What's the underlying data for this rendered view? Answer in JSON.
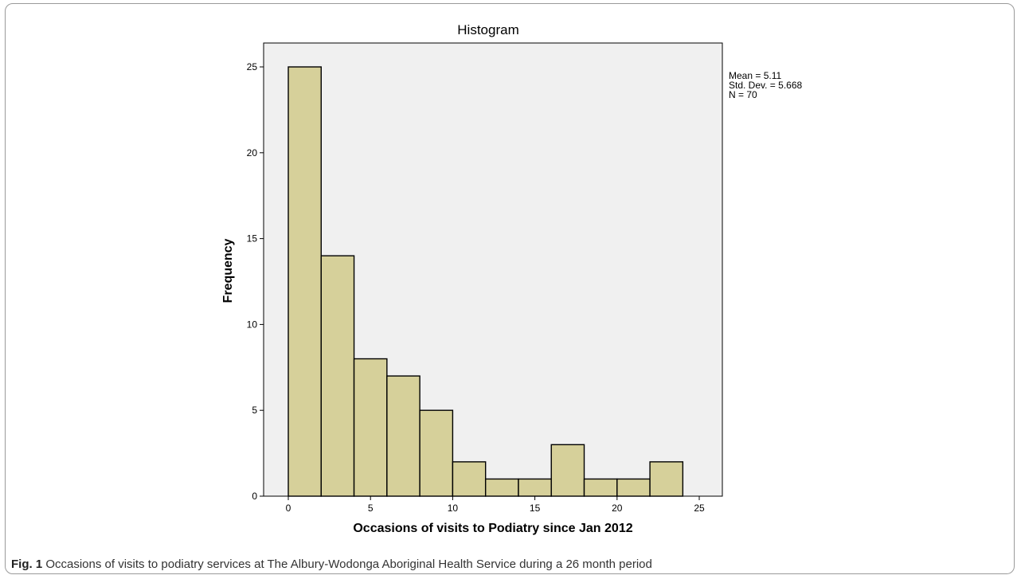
{
  "caption": {
    "label": "Fig. 1",
    "text": "Occasions of visits to podiatry services at The Albury-Wodonga Aboriginal Health Service during a 26 month period"
  },
  "chart_data": {
    "type": "bar",
    "title": "Histogram",
    "xlabel": "Occasions of visits to Podiatry since Jan 2012",
    "ylabel": "Frequency",
    "xlim": [
      -2,
      26
    ],
    "ylim": [
      0,
      27
    ],
    "xticks": [
      0,
      5,
      10,
      15,
      20,
      25
    ],
    "yticks": [
      0,
      5,
      10,
      15,
      20,
      25
    ],
    "bin_width": 2,
    "bins": [
      {
        "start": 0,
        "end": 2,
        "count": 25
      },
      {
        "start": 2,
        "end": 4,
        "count": 14
      },
      {
        "start": 4,
        "end": 6,
        "count": 8
      },
      {
        "start": 6,
        "end": 8,
        "count": 7
      },
      {
        "start": 8,
        "end": 10,
        "count": 5
      },
      {
        "start": 10,
        "end": 12,
        "count": 2
      },
      {
        "start": 12,
        "end": 14,
        "count": 1
      },
      {
        "start": 14,
        "end": 16,
        "count": 1
      },
      {
        "start": 16,
        "end": 18,
        "count": 3
      },
      {
        "start": 18,
        "end": 20,
        "count": 1
      },
      {
        "start": 20,
        "end": 22,
        "count": 1
      },
      {
        "start": 22,
        "end": 24,
        "count": 2
      }
    ],
    "stats": {
      "mean": "Mean = 5.11",
      "std": "Std. Dev. = 5.668",
      "n": "N = 70"
    },
    "colors": {
      "bar_fill": "#d6d09a",
      "bar_stroke": "#000000",
      "plot_bg": "#f0f0f0"
    },
    "grid": false
  }
}
